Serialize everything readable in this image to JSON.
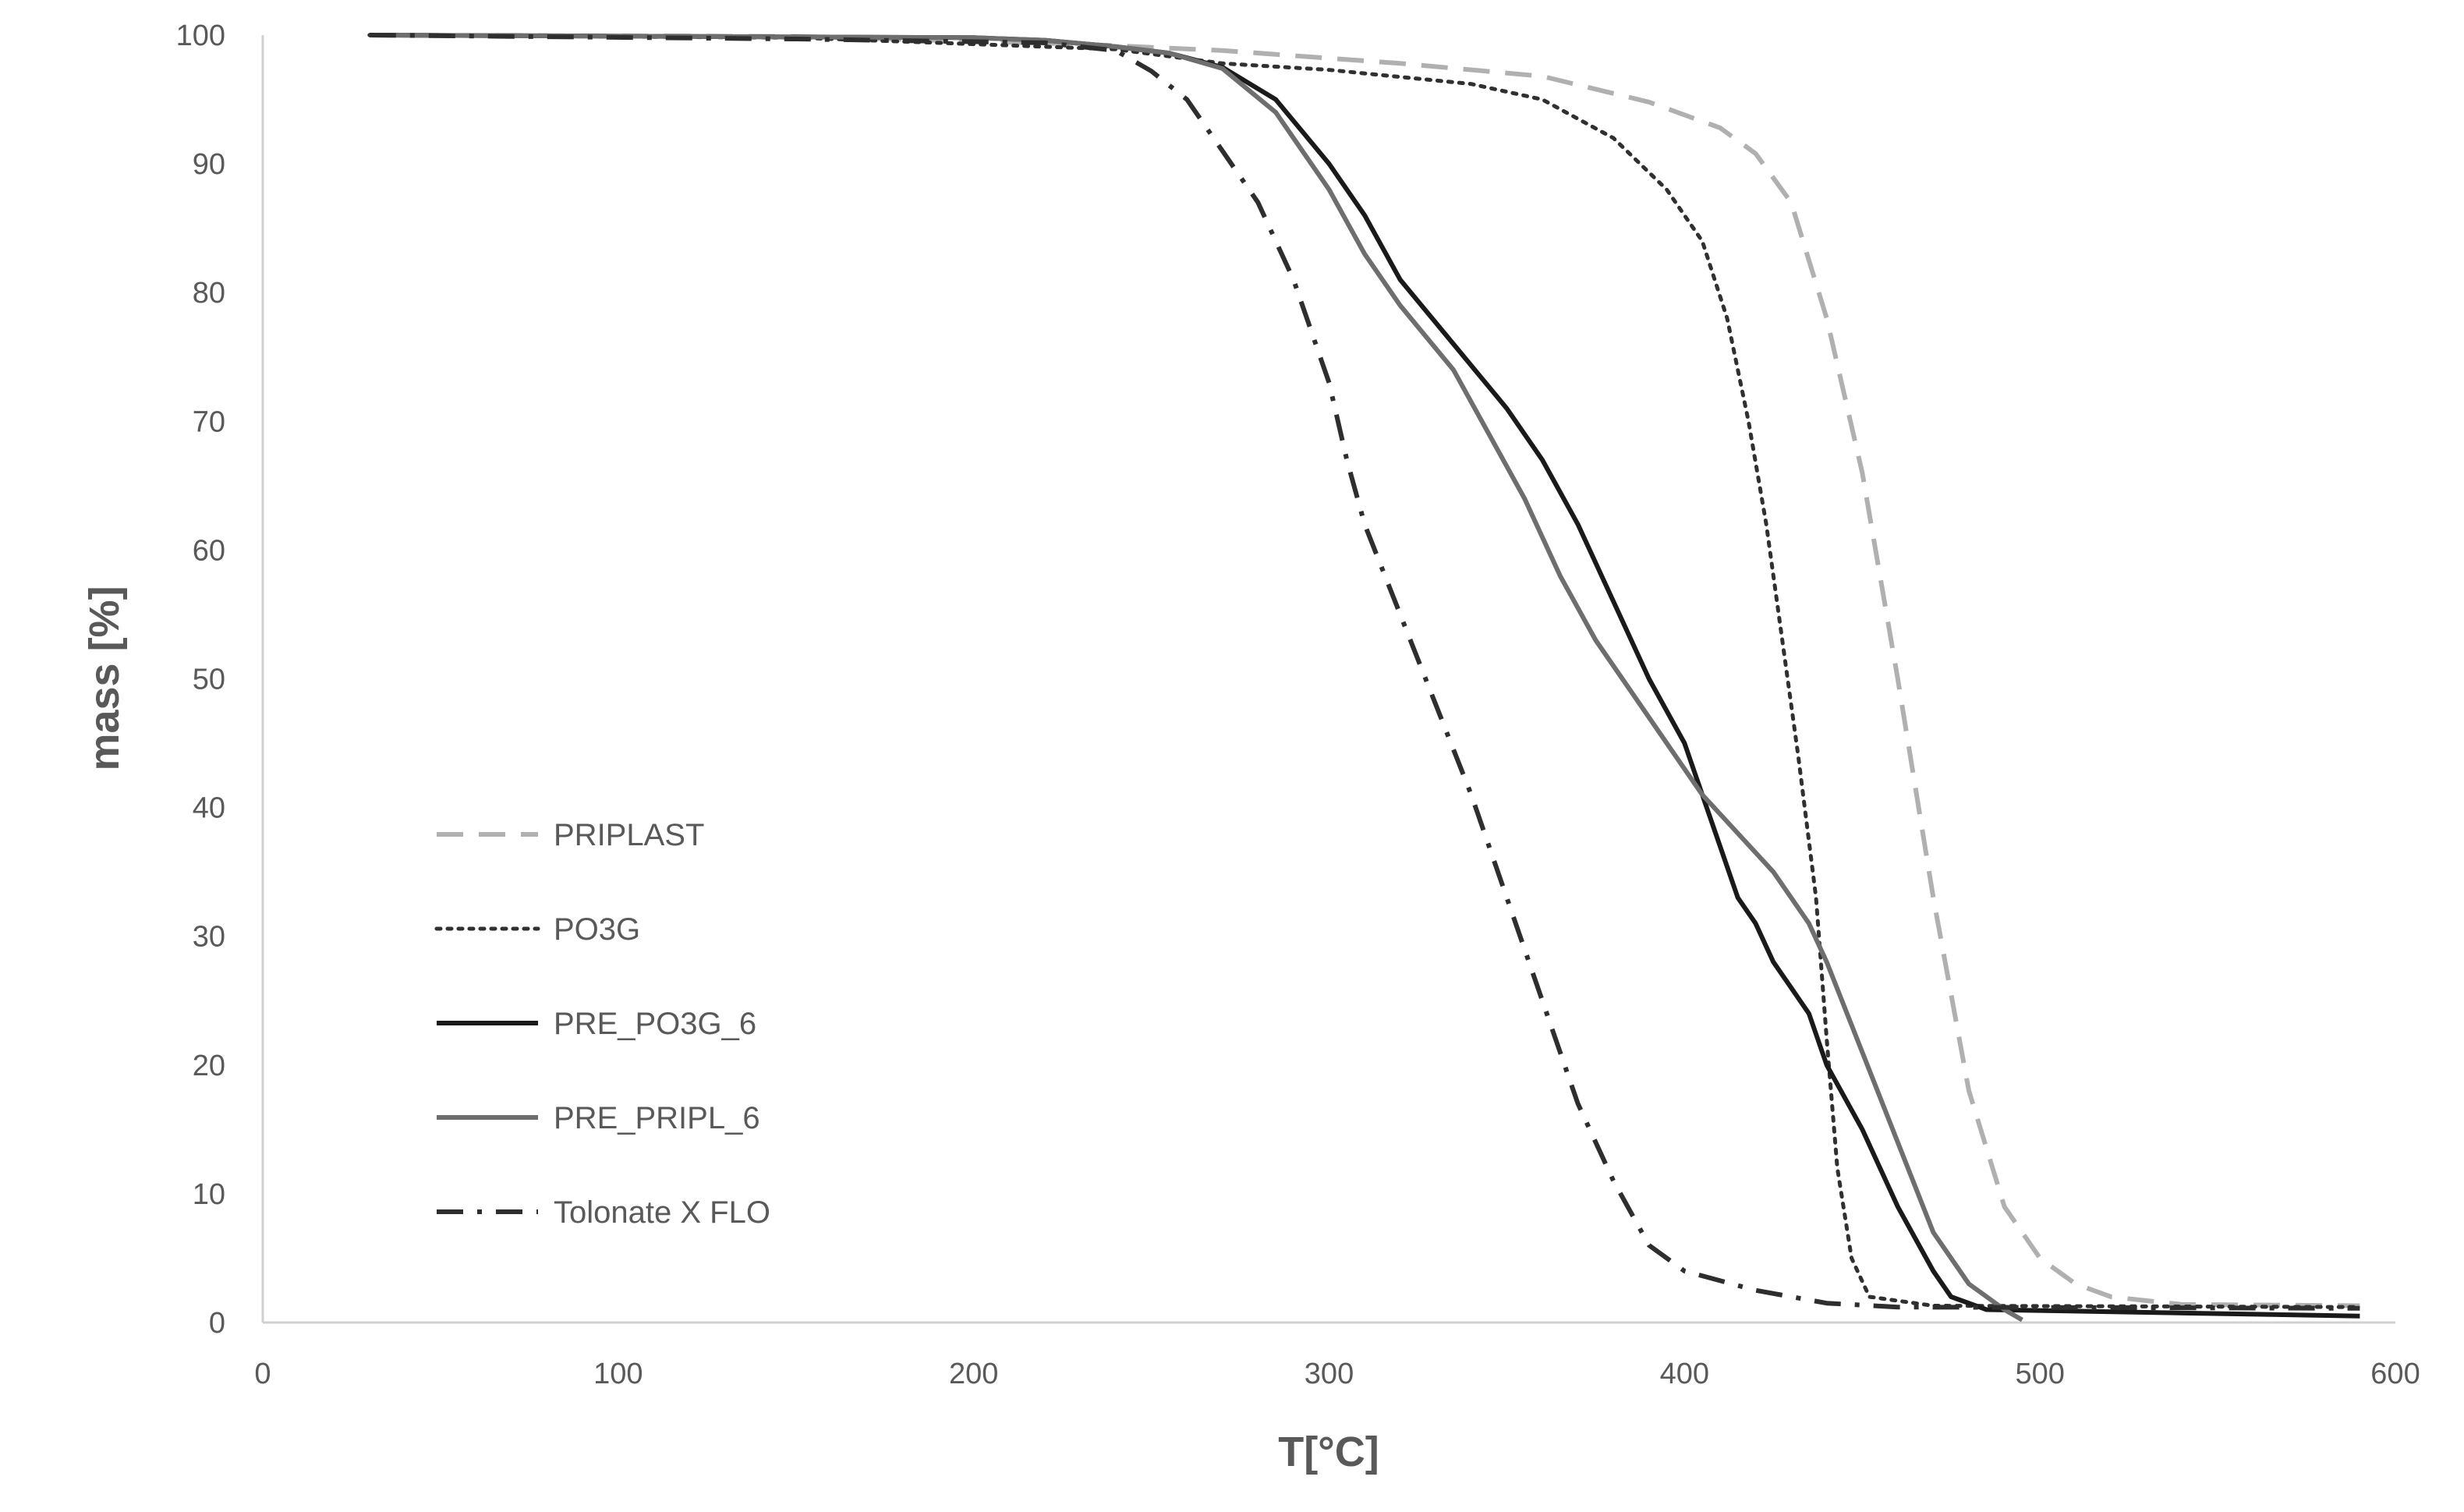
{
  "chart_data": {
    "type": "line",
    "title": "",
    "xlabel": "T[°C]",
    "ylabel": "mass [%]",
    "xlim": [
      0,
      600
    ],
    "ylim": [
      0,
      100
    ],
    "x_ticks": [
      0,
      100,
      200,
      300,
      400,
      500,
      600
    ],
    "y_ticks": [
      0,
      10,
      20,
      30,
      40,
      50,
      60,
      70,
      80,
      90,
      100
    ],
    "grid": false,
    "legend_position": "left",
    "series": [
      {
        "name": "PRIPLAST",
        "color": "#b0b0b0",
        "dash": "dashed",
        "points": [
          [
            30,
            100
          ],
          [
            150,
            99.9
          ],
          [
            230,
            99.3
          ],
          [
            270,
            98.8
          ],
          [
            320,
            97.8
          ],
          [
            360,
            96.8
          ],
          [
            390,
            94.8
          ],
          [
            410,
            92.8
          ],
          [
            420,
            90.8
          ],
          [
            430,
            87
          ],
          [
            440,
            78
          ],
          [
            450,
            66
          ],
          [
            460,
            50
          ],
          [
            470,
            33
          ],
          [
            480,
            18
          ],
          [
            490,
            9
          ],
          [
            500,
            5
          ],
          [
            510,
            3
          ],
          [
            520,
            2
          ],
          [
            540,
            1.4
          ],
          [
            590,
            1.3
          ]
        ]
      },
      {
        "name": "PO3G",
        "color": "#303030",
        "dash": "dotted",
        "points": [
          [
            30,
            100
          ],
          [
            150,
            99.8
          ],
          [
            240,
            98.9
          ],
          [
            270,
            97.8
          ],
          [
            300,
            97.3
          ],
          [
            340,
            96.2
          ],
          [
            360,
            95
          ],
          [
            380,
            92
          ],
          [
            395,
            88
          ],
          [
            405,
            84
          ],
          [
            412,
            78
          ],
          [
            418,
            70
          ],
          [
            423,
            62
          ],
          [
            428,
            52
          ],
          [
            432,
            44
          ],
          [
            437,
            33
          ],
          [
            440,
            22
          ],
          [
            443,
            12
          ],
          [
            447,
            5
          ],
          [
            452,
            2
          ],
          [
            470,
            1.3
          ],
          [
            590,
            1.2
          ]
        ]
      },
      {
        "name": "PRE_PO3G_6",
        "color": "#1a1a1a",
        "dash": "solid",
        "points": [
          [
            30,
            100
          ],
          [
            200,
            99.8
          ],
          [
            220,
            99.6
          ],
          [
            240,
            99.1
          ],
          [
            255,
            98.6
          ],
          [
            270,
            97.5
          ],
          [
            285,
            95
          ],
          [
            300,
            90
          ],
          [
            310,
            86
          ],
          [
            320,
            81
          ],
          [
            335,
            76
          ],
          [
            350,
            71
          ],
          [
            360,
            67
          ],
          [
            370,
            62
          ],
          [
            380,
            56
          ],
          [
            390,
            50
          ],
          [
            400,
            45
          ],
          [
            405,
            41
          ],
          [
            410,
            37
          ],
          [
            415,
            33
          ],
          [
            420,
            31
          ],
          [
            425,
            28
          ],
          [
            430,
            26
          ],
          [
            435,
            24
          ],
          [
            440,
            20
          ],
          [
            450,
            15
          ],
          [
            460,
            9
          ],
          [
            470,
            4
          ],
          [
            475,
            2
          ],
          [
            485,
            1
          ],
          [
            590,
            0.5
          ]
        ]
      },
      {
        "name": "PRE_PRIPL_6",
        "color": "#6e6e6e",
        "dash": "solid",
        "points": [
          [
            30,
            100
          ],
          [
            200,
            99.8
          ],
          [
            220,
            99.6
          ],
          [
            240,
            99.1
          ],
          [
            255,
            98.6
          ],
          [
            270,
            97.4
          ],
          [
            285,
            94
          ],
          [
            300,
            88
          ],
          [
            310,
            83
          ],
          [
            320,
            79
          ],
          [
            335,
            74
          ],
          [
            345,
            69
          ],
          [
            355,
            64
          ],
          [
            365,
            58
          ],
          [
            375,
            53
          ],
          [
            385,
            49
          ],
          [
            395,
            45
          ],
          [
            405,
            41
          ],
          [
            415,
            38
          ],
          [
            425,
            35
          ],
          [
            435,
            31
          ],
          [
            440,
            28
          ],
          [
            450,
            21
          ],
          [
            460,
            14
          ],
          [
            470,
            7
          ],
          [
            480,
            3
          ],
          [
            490,
            1
          ],
          [
            495,
            0.2
          ]
        ]
      },
      {
        "name": "Tolonate X FLO",
        "color": "#2e2e2e",
        "dash": "dashdot",
        "points": [
          [
            30,
            100
          ],
          [
            150,
            99.7
          ],
          [
            220,
            99.4
          ],
          [
            240,
            98.8
          ],
          [
            250,
            97.2
          ],
          [
            260,
            95
          ],
          [
            270,
            91
          ],
          [
            280,
            87
          ],
          [
            290,
            81
          ],
          [
            300,
            73
          ],
          [
            305,
            67
          ],
          [
            310,
            62
          ],
          [
            320,
            55
          ],
          [
            330,
            48
          ],
          [
            340,
            41
          ],
          [
            350,
            33
          ],
          [
            360,
            25
          ],
          [
            370,
            17
          ],
          [
            380,
            11
          ],
          [
            390,
            6
          ],
          [
            400,
            4
          ],
          [
            420,
            2.5
          ],
          [
            440,
            1.5
          ],
          [
            460,
            1.2
          ],
          [
            590,
            1.1
          ]
        ]
      }
    ]
  }
}
